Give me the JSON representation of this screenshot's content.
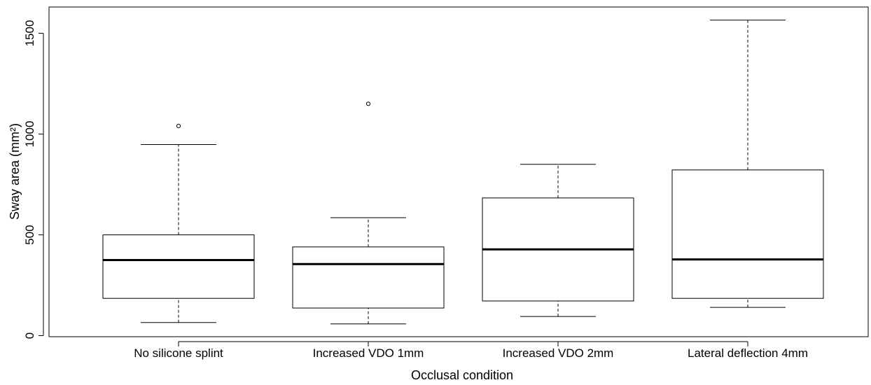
{
  "chart_data": {
    "type": "boxplot",
    "xlabel": "Occlusal condition",
    "ylabel": "Sway area (mm²)",
    "ylim": [
      0,
      1650
    ],
    "yticks": [
      0,
      500,
      1000,
      1500
    ],
    "grid": false,
    "categories": [
      "No silicone splint",
      "Increased VDO 1mm",
      "Increased VDO 2mm",
      "Lateral deflection 4mm"
    ],
    "boxes": [
      {
        "whisker_low": 65,
        "q1": 185,
        "median": 375,
        "q3": 500,
        "whisker_high": 948,
        "outliers": [
          1040
        ]
      },
      {
        "whisker_low": 58,
        "q1": 137,
        "median": 355,
        "q3": 440,
        "whisker_high": 585,
        "outliers": [
          1150
        ]
      },
      {
        "whisker_low": 95,
        "q1": 172,
        "median": 428,
        "q3": 683,
        "whisker_high": 850,
        "outliers": []
      },
      {
        "whisker_low": 140,
        "q1": 185,
        "median": 378,
        "q3": 822,
        "whisker_high": 1565,
        "outliers": []
      }
    ]
  }
}
